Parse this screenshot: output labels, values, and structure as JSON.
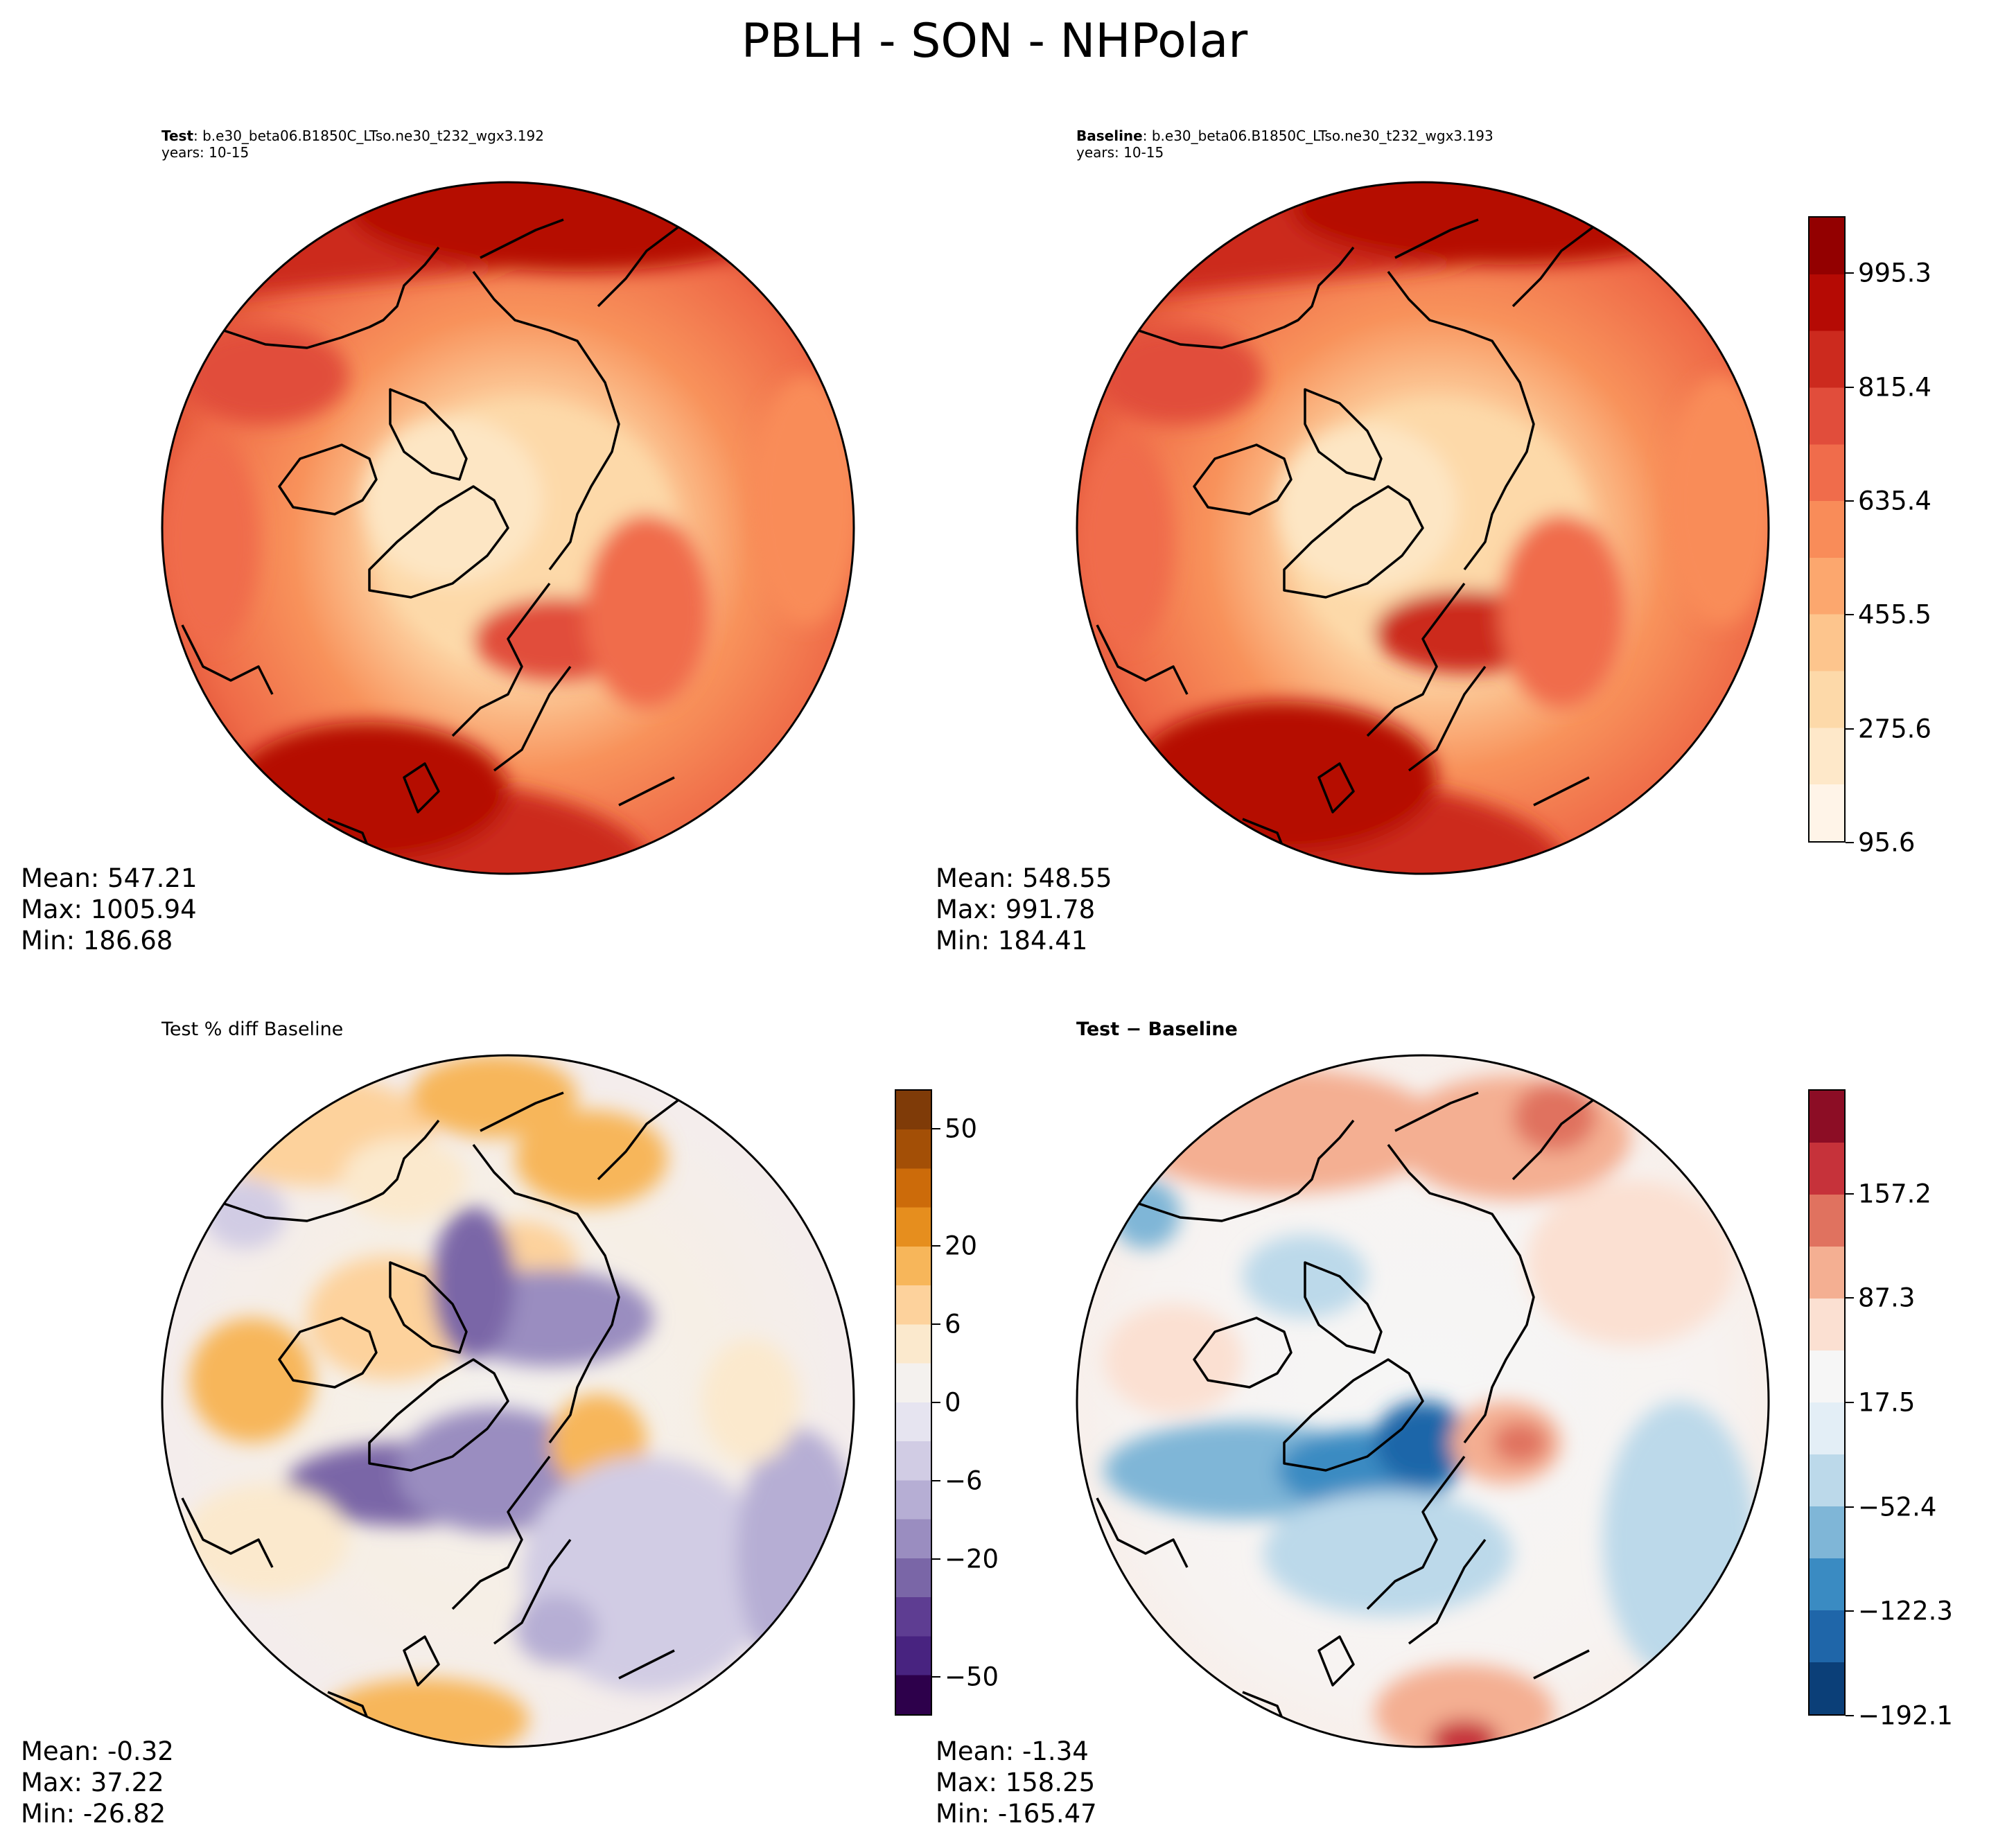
{
  "figure": {
    "suptitle": "PBLH - SON - NHPolar",
    "variable": "PBLH",
    "season": "SON",
    "region": "NHPolar"
  },
  "panels": {
    "test": {
      "title_bold": "Test",
      "title_rest": ": b.e30_beta06.B1850C_LTso.ne30_t232_wgx3.192",
      "years": "years: 10-15",
      "stats": {
        "mean": "Mean: 547.21",
        "max": "Max: 1005.94",
        "min": "Min: 186.68"
      }
    },
    "baseline": {
      "title_bold": "Baseline",
      "title_rest": ": b.e30_beta06.B1850C_LTso.ne30_t232_wgx3.193",
      "years": "years: 10-15",
      "stats": {
        "mean": "Mean: 548.55",
        "max": "Max: 991.78",
        "min": "Min: 184.41"
      }
    },
    "pct_diff": {
      "title": "Test % diff Baseline",
      "stats": {
        "mean": "Mean: -0.32",
        "max": "Max: 37.22",
        "min": "Min: -26.82"
      }
    },
    "diff": {
      "title": "Test − Baseline",
      "stats": {
        "mean": "Mean: -1.34",
        "max": "Max: 158.25",
        "min": "Min: -165.47"
      }
    }
  },
  "colorbars": {
    "field": {
      "colormap": "OrRd",
      "colors": [
        "#fff4e8",
        "#fee8c9",
        "#fdd9a9",
        "#fdc58d",
        "#fca76e",
        "#f98c59",
        "#f06c4b",
        "#e14d3b",
        "#cc2a1e",
        "#b50a04",
        "#930000"
      ],
      "ticks": [
        "95.6",
        "275.6",
        "455.5",
        "635.4",
        "815.4",
        "995.3"
      ]
    },
    "pct": {
      "colormap": "PuOr",
      "colors": [
        "#2d004b",
        "#482380",
        "#5e3d92",
        "#7a66a7",
        "#9a8dc0",
        "#b6aed4",
        "#d1cce4",
        "#e6e4f0",
        "#f4f1ee",
        "#fbe9cd",
        "#fdd29c",
        "#f7b65a",
        "#e68e1e",
        "#cc6b0a",
        "#a34f06",
        "#7f3b08"
      ],
      "ticks": [
        "-50",
        "-20",
        "-6",
        "0",
        "6",
        "20",
        "50"
      ],
      "tick_labels": [
        "−50",
        "−20",
        "−6",
        "0",
        "6",
        "20",
        "50"
      ]
    },
    "diff": {
      "colormap": "RdBu_r",
      "colors": [
        "#0b3f78",
        "#1f66a9",
        "#3a8bc2",
        "#7fb6d7",
        "#bcd9ea",
        "#e3eef6",
        "#f6f6f6",
        "#fbe0d2",
        "#f4af92",
        "#e0725f",
        "#c6323a",
        "#8c0d25"
      ],
      "ticks": [
        "-192.1",
        "-122.3",
        "-52.4",
        "17.5",
        "87.3",
        "157.2"
      ],
      "tick_labels": [
        "−192.1",
        "−122.3",
        "−52.4",
        "17.5",
        "87.3",
        "157.2"
      ]
    }
  }
}
